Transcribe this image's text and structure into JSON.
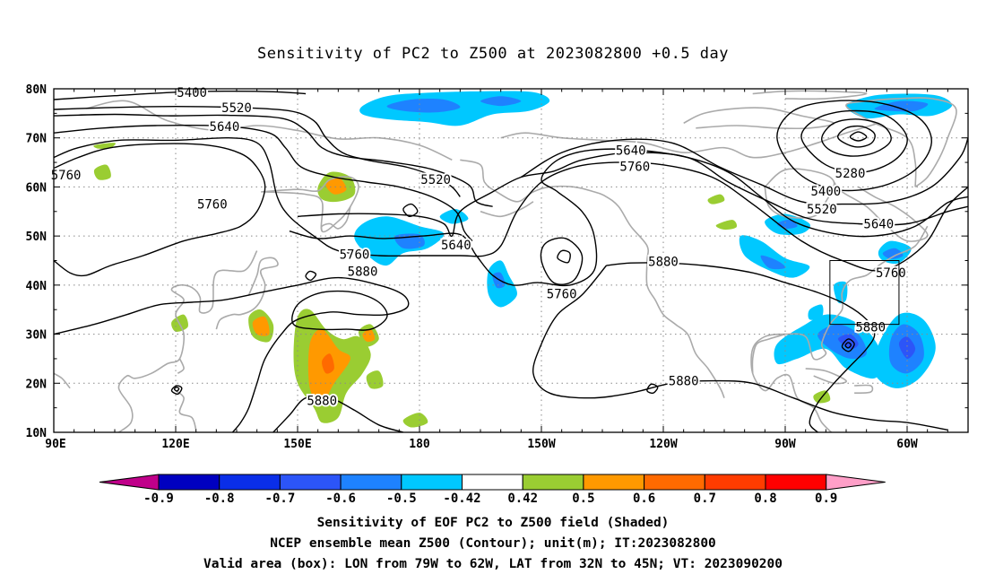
{
  "title": "Sensitivity of PC2 to Z500 at 2023082800 +0.5 day",
  "map": {
    "lon_labels": [
      "90E",
      "120E",
      "150E",
      "180",
      "150W",
      "120W",
      "90W",
      "60W"
    ],
    "lat_labels": [
      "80N",
      "70N",
      "60N",
      "50N",
      "40N",
      "30N",
      "20N",
      "10N"
    ],
    "contour_labels": [
      {
        "text": "5400",
        "lon": 124,
        "lat": 79.3
      },
      {
        "text": "5520",
        "lon": 135,
        "lat": 76.2
      },
      {
        "text": "5640",
        "lon": 132,
        "lat": 72.3
      },
      {
        "text": "5760",
        "lon": 93,
        "lat": 62.5
      },
      {
        "text": "5760",
        "lon": 129,
        "lat": 56.5
      },
      {
        "text": "5520",
        "lon": 184,
        "lat": 61.5
      },
      {
        "text": "5640",
        "lon": 232,
        "lat": 67.5
      },
      {
        "text": "5760",
        "lon": 233,
        "lat": 64.2
      },
      {
        "text": "5760",
        "lon": 164,
        "lat": 46.3
      },
      {
        "text": "5640",
        "lon": 189,
        "lat": 48.2
      },
      {
        "text": "5880",
        "lon": 166,
        "lat": 42.8
      },
      {
        "text": "5880",
        "lon": 240,
        "lat": 44.8
      },
      {
        "text": "5760",
        "lon": 215,
        "lat": 38.2
      },
      {
        "text": "5280",
        "lon": 286,
        "lat": 62.8
      },
      {
        "text": "5400",
        "lon": 280,
        "lat": 59.2
      },
      {
        "text": "5520",
        "lon": 279,
        "lat": 55.5
      },
      {
        "text": "5640",
        "lon": 293,
        "lat": 52.5
      },
      {
        "text": "5760",
        "lon": 296,
        "lat": 42.5
      },
      {
        "text": "5880",
        "lon": 291,
        "lat": 31.5
      },
      {
        "text": "5880",
        "lon": 245,
        "lat": 20.5
      },
      {
        "text": "5880",
        "lon": 156,
        "lat": 16.5
      }
    ],
    "valid_box": {
      "lon_min": 281,
      "lon_max": 298,
      "lat_min": 32,
      "lat_max": 45
    }
  },
  "colorbar": {
    "labels": [
      "-0.9",
      "-0.8",
      "-0.7",
      "-0.6",
      "-0.5",
      "-0.42",
      "0.42",
      "0.5",
      "0.6",
      "0.7",
      "0.8",
      "0.9"
    ],
    "colors": [
      "#0000c0",
      "#0a2ee8",
      "#2c55f8",
      "#1e82ff",
      "#00c8ff",
      "#ffffff",
      "#9acd32",
      "#ff9900",
      "#ff6a00",
      "#ff3c00",
      "#ff0000"
    ],
    "low_end_color": "#c0008a",
    "high_end_color": "#ff9fc8"
  },
  "captions": [
    "Sensitivity of EOF PC2 to Z500 field (Shaded)",
    "NCEP ensemble mean Z500 (Contour); unit(m); IT:2023082800",
    "Valid area (box): LON from 79W to 62W, LAT from 32N to 45N; VT: 2023090200"
  ]
}
